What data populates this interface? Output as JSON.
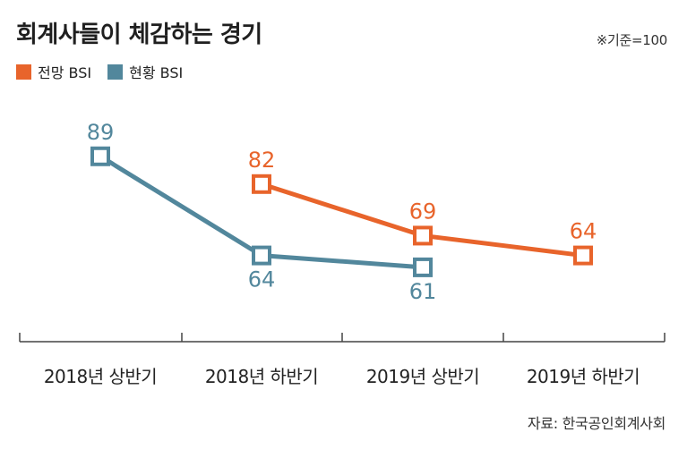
{
  "title": "회계사들이 체감하는 경기",
  "note": "※기준=100",
  "source": "자료: 한국공인회계사회",
  "colors": {
    "outlook": "#e8642b",
    "current": "#52879c"
  },
  "chart_data": {
    "type": "line",
    "title": "회계사들이 체감하는 경기",
    "categories": [
      "2018년 상반기",
      "2018년 하반기",
      "2019년 상반기",
      "2019년 하반기"
    ],
    "series": [
      {
        "name": "전망 BSI",
        "values": [
          null,
          82,
          69,
          64
        ]
      },
      {
        "name": "현황 BSI",
        "values": [
          89,
          64,
          61,
          null
        ]
      }
    ],
    "ylim": [
      40,
      100
    ],
    "grid": false,
    "legend": "top-left"
  }
}
